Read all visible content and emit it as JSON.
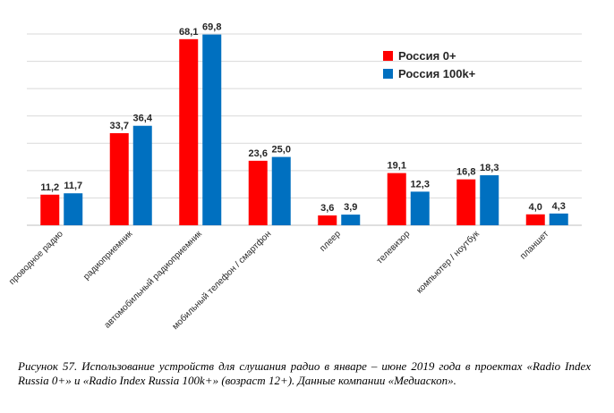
{
  "chart_data": {
    "type": "bar",
    "categories": [
      "проводное радио",
      "радиоприемник",
      "автомобильный радиоприемник",
      "мобильный телефон / смартфон",
      "плеер",
      "телевизор",
      "компьютер / ноутбук",
      "планшет"
    ],
    "series": [
      {
        "name": "Россия 0+",
        "color": "#ff0000",
        "values": [
          11.2,
          33.7,
          68.1,
          23.6,
          3.6,
          19.1,
          16.8,
          4.0
        ],
        "labels": [
          "11,2",
          "33,7",
          "68,1",
          "23,6",
          "3,6",
          "19,1",
          "16,8",
          "4,0"
        ]
      },
      {
        "name": "Россия 100k+",
        "color": "#0070c0",
        "values": [
          11.7,
          36.4,
          69.8,
          25.0,
          3.9,
          12.3,
          18.3,
          4.3
        ],
        "labels": [
          "11,7",
          "36,4",
          "69,8",
          "25,0",
          "3,9",
          "12,3",
          "18,3",
          "4,3"
        ]
      }
    ],
    "ylim": [
      0,
      70
    ],
    "grid": true,
    "legend_position": "top-right"
  },
  "caption": "Рисунок 57. Использование устройств для слушания радио в январе – июне 2019 года в проектах «Radio Index Russia 0+» и «Radio Index Russia 100k+» (возраст 12+). Данные компании «Медиаскоп»."
}
